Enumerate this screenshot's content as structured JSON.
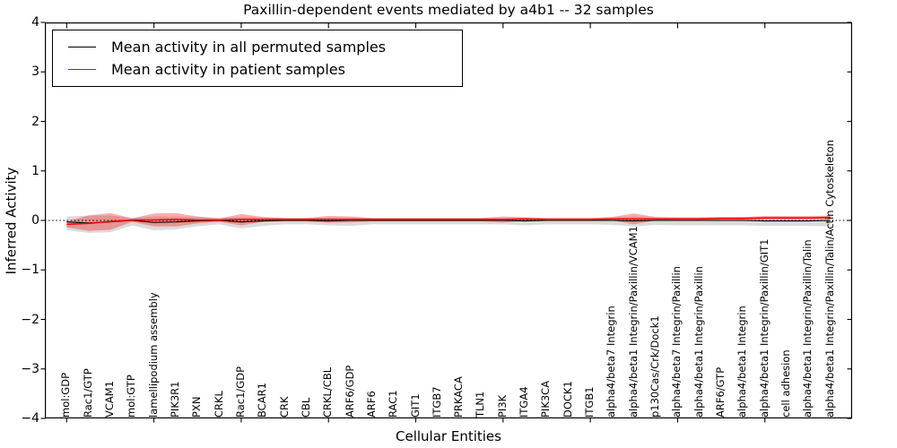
{
  "title": "Paxillin-dependent events mediated by a4b1 -- 32 samples",
  "legend": {
    "entries": [
      {
        "label": "Mean activity in all permuted samples",
        "color": "#000000"
      },
      {
        "label": "Mean activity in patient samples",
        "color": "#ff0000"
      }
    ]
  },
  "chart_data": {
    "type": "line",
    "title": "Paxillin-dependent events mediated by a4b1 -- 32 samples",
    "xlabel": "Cellular Entities",
    "ylabel": "Inferred Activity",
    "ylim": [
      -4,
      4
    ],
    "xlim": [
      -1,
      36
    ],
    "ytick_labels": [
      "4",
      "3",
      "2",
      "1",
      "0",
      "−1",
      "−2",
      "−3",
      "−4"
    ],
    "ytick_values": [
      4,
      3,
      2,
      1,
      0,
      -1,
      -2,
      -3,
      -4
    ],
    "xtick_every": 4,
    "grid": false,
    "zero_line_style": "dotted",
    "legend_position": "upper left",
    "colors": {
      "permuted_line": "#000000",
      "patient_line": "#ff0000",
      "permuted_band": "rgba(110,110,110,0.25)",
      "patient_band": "rgba(255,0,0,0.32)"
    },
    "categories": [
      "mol:GDP",
      "Rac1/GTP",
      "VCAM1",
      "mol:GTP",
      "lamellipodium assembly",
      "PIK3R1",
      "PXN",
      "CRKL",
      "Rac1/GDP",
      "BCAR1",
      "CRK",
      "CBL",
      "CRKL/CBL",
      "ARF6/GDP",
      "ARF6",
      "RAC1",
      "GIT1",
      "ITGB7",
      "PRKACA",
      "TLN1",
      "PI3K",
      "ITGA4",
      "PIK3CA",
      "DOCK1",
      "ITGB1",
      "alpha4/beta7 Integrin",
      "alpha4/beta1 Integrin/Paxillin/VCAM1",
      "p130Cas/Crk/Dock1",
      "alpha4/beta7 Integrin/Paxillin",
      "alpha4/beta1 Integrin/Paxillin",
      "ARF6/GTP",
      "alpha4/beta1 Integrin",
      "alpha4/beta1 Integrin/Paxillin/GIT1",
      "cell adhesion",
      "alpha4/beta1 Integrin/Paxillin/Talin",
      "alpha4/beta1 Integrin/Paxillin/Talin/Actin Cytoskeleton"
    ],
    "series": [
      {
        "name": "Mean activity in all permuted samples",
        "values": [
          -0.03,
          -0.05,
          -0.03,
          0.0,
          -0.04,
          -0.03,
          -0.01,
          0.0,
          -0.03,
          -0.01,
          0.0,
          0.0,
          -0.01,
          0.0,
          0.0,
          0.0,
          0.0,
          0.0,
          0.0,
          0.0,
          0.0,
          -0.01,
          0.0,
          0.0,
          0.0,
          0.0,
          -0.01,
          0.0,
          0.0,
          0.0,
          0.0,
          0.0,
          -0.01,
          -0.01,
          -0.01,
          0.0
        ],
        "band_upper": [
          0.08,
          0.1,
          0.1,
          0.05,
          0.08,
          0.08,
          0.06,
          0.05,
          0.07,
          0.06,
          0.05,
          0.05,
          0.06,
          0.06,
          0.05,
          0.05,
          0.05,
          0.05,
          0.05,
          0.05,
          0.05,
          0.06,
          0.05,
          0.05,
          0.05,
          0.06,
          0.08,
          0.06,
          0.06,
          0.06,
          0.06,
          0.06,
          0.07,
          0.07,
          0.07,
          0.08
        ],
        "band_lower": [
          -0.2,
          -0.25,
          -0.24,
          -0.1,
          -0.2,
          -0.18,
          -0.12,
          -0.08,
          -0.16,
          -0.11,
          -0.08,
          -0.08,
          -0.1,
          -0.11,
          -0.08,
          -0.08,
          -0.08,
          -0.08,
          -0.08,
          -0.08,
          -0.08,
          -0.1,
          -0.08,
          -0.08,
          -0.08,
          -0.09,
          -0.12,
          -0.09,
          -0.1,
          -0.1,
          -0.1,
          -0.1,
          -0.11,
          -0.11,
          -0.11,
          -0.12
        ]
      },
      {
        "name": "Mean activity in patient samples",
        "values": [
          -0.08,
          -0.06,
          -0.02,
          0.01,
          0.01,
          0.02,
          0.01,
          0.01,
          0.02,
          0.02,
          0.02,
          0.02,
          0.02,
          0.02,
          0.02,
          0.02,
          0.02,
          0.02,
          0.02,
          0.02,
          0.02,
          0.03,
          0.02,
          0.02,
          0.02,
          0.03,
          0.03,
          0.03,
          0.03,
          0.03,
          0.04,
          0.04,
          0.05,
          0.05,
          0.05,
          0.06
        ],
        "band_upper": [
          -0.02,
          0.1,
          0.15,
          0.04,
          0.14,
          0.15,
          0.08,
          0.04,
          0.13,
          0.07,
          0.05,
          0.05,
          0.09,
          0.08,
          0.05,
          0.05,
          0.05,
          0.05,
          0.05,
          0.05,
          0.08,
          0.06,
          0.05,
          0.05,
          0.05,
          0.07,
          0.14,
          0.07,
          0.06,
          0.06,
          0.07,
          0.07,
          0.09,
          0.09,
          0.09,
          0.1
        ],
        "band_lower": [
          -0.14,
          -0.21,
          -0.19,
          -0.03,
          -0.12,
          -0.12,
          -0.06,
          -0.03,
          -0.1,
          -0.03,
          -0.02,
          -0.02,
          -0.05,
          -0.04,
          -0.02,
          -0.02,
          -0.02,
          -0.02,
          -0.02,
          -0.02,
          -0.04,
          -0.01,
          -0.01,
          -0.01,
          -0.01,
          0.0,
          -0.08,
          0.0,
          0.0,
          0.0,
          0.01,
          0.01,
          0.02,
          0.02,
          0.02,
          0.02
        ]
      }
    ]
  }
}
